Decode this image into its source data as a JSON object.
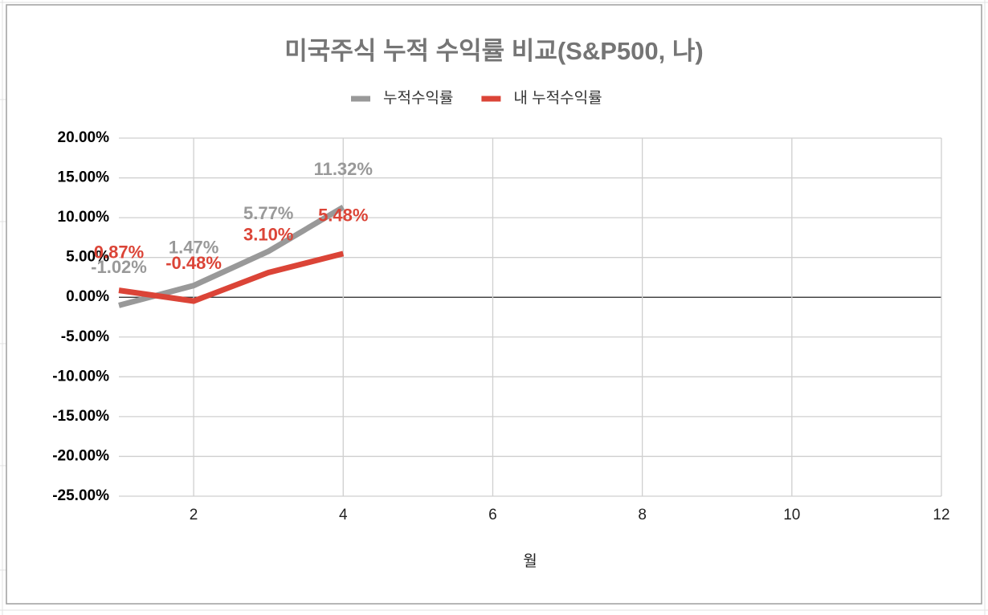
{
  "chart_data": {
    "type": "line",
    "title": "미국주식 누적 수익률 비교(S&P500, 나)",
    "x_label": "월",
    "x": [
      1,
      2,
      3,
      4
    ],
    "series": [
      {
        "name": "누적수익률",
        "color": "#999999",
        "values": [
          -1.02,
          1.47,
          5.77,
          11.32
        ],
        "value_labels": [
          "-1.02%",
          "1.47%",
          "5.77%",
          "11.32%"
        ]
      },
      {
        "name": "내 누적수익률",
        "color": "#db4437",
        "values": [
          0.87,
          -0.48,
          3.1,
          5.48
        ],
        "value_labels": [
          "0.87%",
          "-0.48%",
          "3.10%",
          "5.48%"
        ]
      }
    ],
    "xlim": [
      1,
      12
    ],
    "xticks": [
      2,
      4,
      6,
      8,
      10,
      12
    ],
    "ylim": [
      -25,
      20
    ],
    "yticks": [
      {
        "value": 20,
        "label": "20.00%"
      },
      {
        "value": 15,
        "label": "15.00%"
      },
      {
        "value": 10,
        "label": "10.00%"
      },
      {
        "value": 5,
        "label": "5.00%"
      },
      {
        "value": 0,
        "label": "0.00%"
      },
      {
        "value": -5,
        "label": "-5.00%"
      },
      {
        "value": -10,
        "label": "-10.00%"
      },
      {
        "value": -15,
        "label": "-15.00%"
      },
      {
        "value": -20,
        "label": "-20.00%"
      },
      {
        "value": -25,
        "label": "-25.00%"
      }
    ],
    "grid": true,
    "legend": "top"
  }
}
